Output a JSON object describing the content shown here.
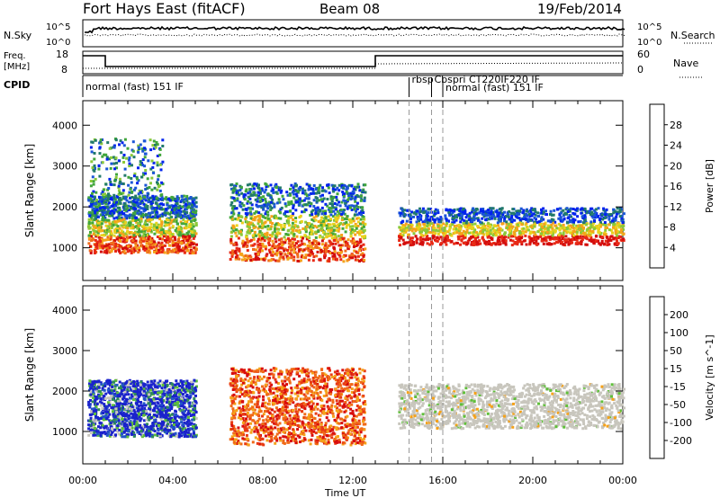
{
  "header": {
    "station": "Fort Hays East (fitACF)",
    "beam": "Beam 08",
    "date": "19/Feb/2014"
  },
  "left_labels": {
    "nsky": "N.Sky",
    "freq_line1": "Freq.",
    "freq_line2": "[MHz]",
    "cpid": "CPID"
  },
  "right_labels": {
    "nsearch": "N.Search",
    "nave": "Nave"
  },
  "nsky_axis": {
    "top": "10^5",
    "bottom": "10^0"
  },
  "freq_axis": {
    "top": "18",
    "bottom": "8"
  },
  "nave_axis": {
    "top": "60",
    "bottom": "0"
  },
  "cpid_labels": [
    {
      "text": "normal (fast) 151 IF",
      "start_hour": 0.0
    },
    {
      "text": "rbsp",
      "start_hour": 14.5
    },
    {
      "text": "Cbspri CT220IF220 IF",
      "start_hour": 15.5
    },
    {
      "text": "normal (fast) 151 IF",
      "start_hour": 16.0
    }
  ],
  "chart_data": [
    {
      "type": "heatmap",
      "name": "power",
      "ylabel": "Slant Range [km]",
      "xlabel": "Time UT",
      "xlim": [
        0,
        24
      ],
      "ylim": [
        200,
        4600
      ],
      "x_ticks": [
        "00:00",
        "04:00",
        "08:00",
        "12:00",
        "16:00",
        "20:00",
        "00:00"
      ],
      "y_ticks": [
        1000,
        2000,
        3000,
        4000
      ],
      "colorbar": {
        "label": "Power [dB]",
        "ticks": [
          "4",
          "8",
          "12",
          "16",
          "20",
          "24",
          "28"
        ],
        "colors": [
          "#0022ee",
          "#1a55d6",
          "#227a6a",
          "#41a63b",
          "#8ac939",
          "#e8d21c",
          "#f5a21a",
          "#f06d1c",
          "#e82a16",
          "#d30d0d"
        ]
      },
      "cpid_change_hours": [
        14.5,
        15.5,
        16.0
      ],
      "regions": [
        {
          "x0": 0.2,
          "x1": 5.0,
          "y0": 900,
          "y1": 2300,
          "level": "high"
        },
        {
          "x0": 0.3,
          "x1": 3.5,
          "y0": 2200,
          "y1": 3700,
          "level": "low"
        },
        {
          "x0": 6.5,
          "x1": 12.5,
          "y0": 700,
          "y1": 2600,
          "level": "high"
        },
        {
          "x0": 14.0,
          "x1": 24.0,
          "y0": 1100,
          "y1": 2200,
          "level": "band"
        }
      ]
    },
    {
      "type": "heatmap",
      "name": "velocity",
      "ylabel": "Slant Range [km]",
      "xlabel": "Time UT",
      "xlim": [
        0,
        24
      ],
      "ylim": [
        200,
        4600
      ],
      "x_ticks": [
        "00:00",
        "04:00",
        "08:00",
        "12:00",
        "16:00",
        "20:00",
        "00:00"
      ],
      "y_ticks": [
        1000,
        2000,
        3000,
        4000
      ],
      "colorbar": {
        "label": "Velocity [m s^-1]",
        "ticks": [
          "200",
          "100",
          "50",
          "15",
          "-15",
          "-50",
          "-100",
          "-200"
        ],
        "colors": [
          "#1a22cc",
          "#2255c8",
          "#2e8a5a",
          "#5fbf3a",
          "#c8c6bd",
          "#f5a21a",
          "#f06a18",
          "#e83a14",
          "#d80d0d"
        ]
      },
      "cpid_change_hours": [
        14.5,
        15.5,
        16.0
      ],
      "regions": [
        {
          "x0": 0.2,
          "x1": 5.0,
          "y0": 900,
          "y1": 2300,
          "level": "toward"
        },
        {
          "x0": 6.5,
          "x1": 12.5,
          "y0": 700,
          "y1": 2600,
          "level": "away"
        },
        {
          "x0": 14.0,
          "x1": 24.0,
          "y0": 1100,
          "y1": 2200,
          "level": "ground"
        }
      ]
    }
  ]
}
